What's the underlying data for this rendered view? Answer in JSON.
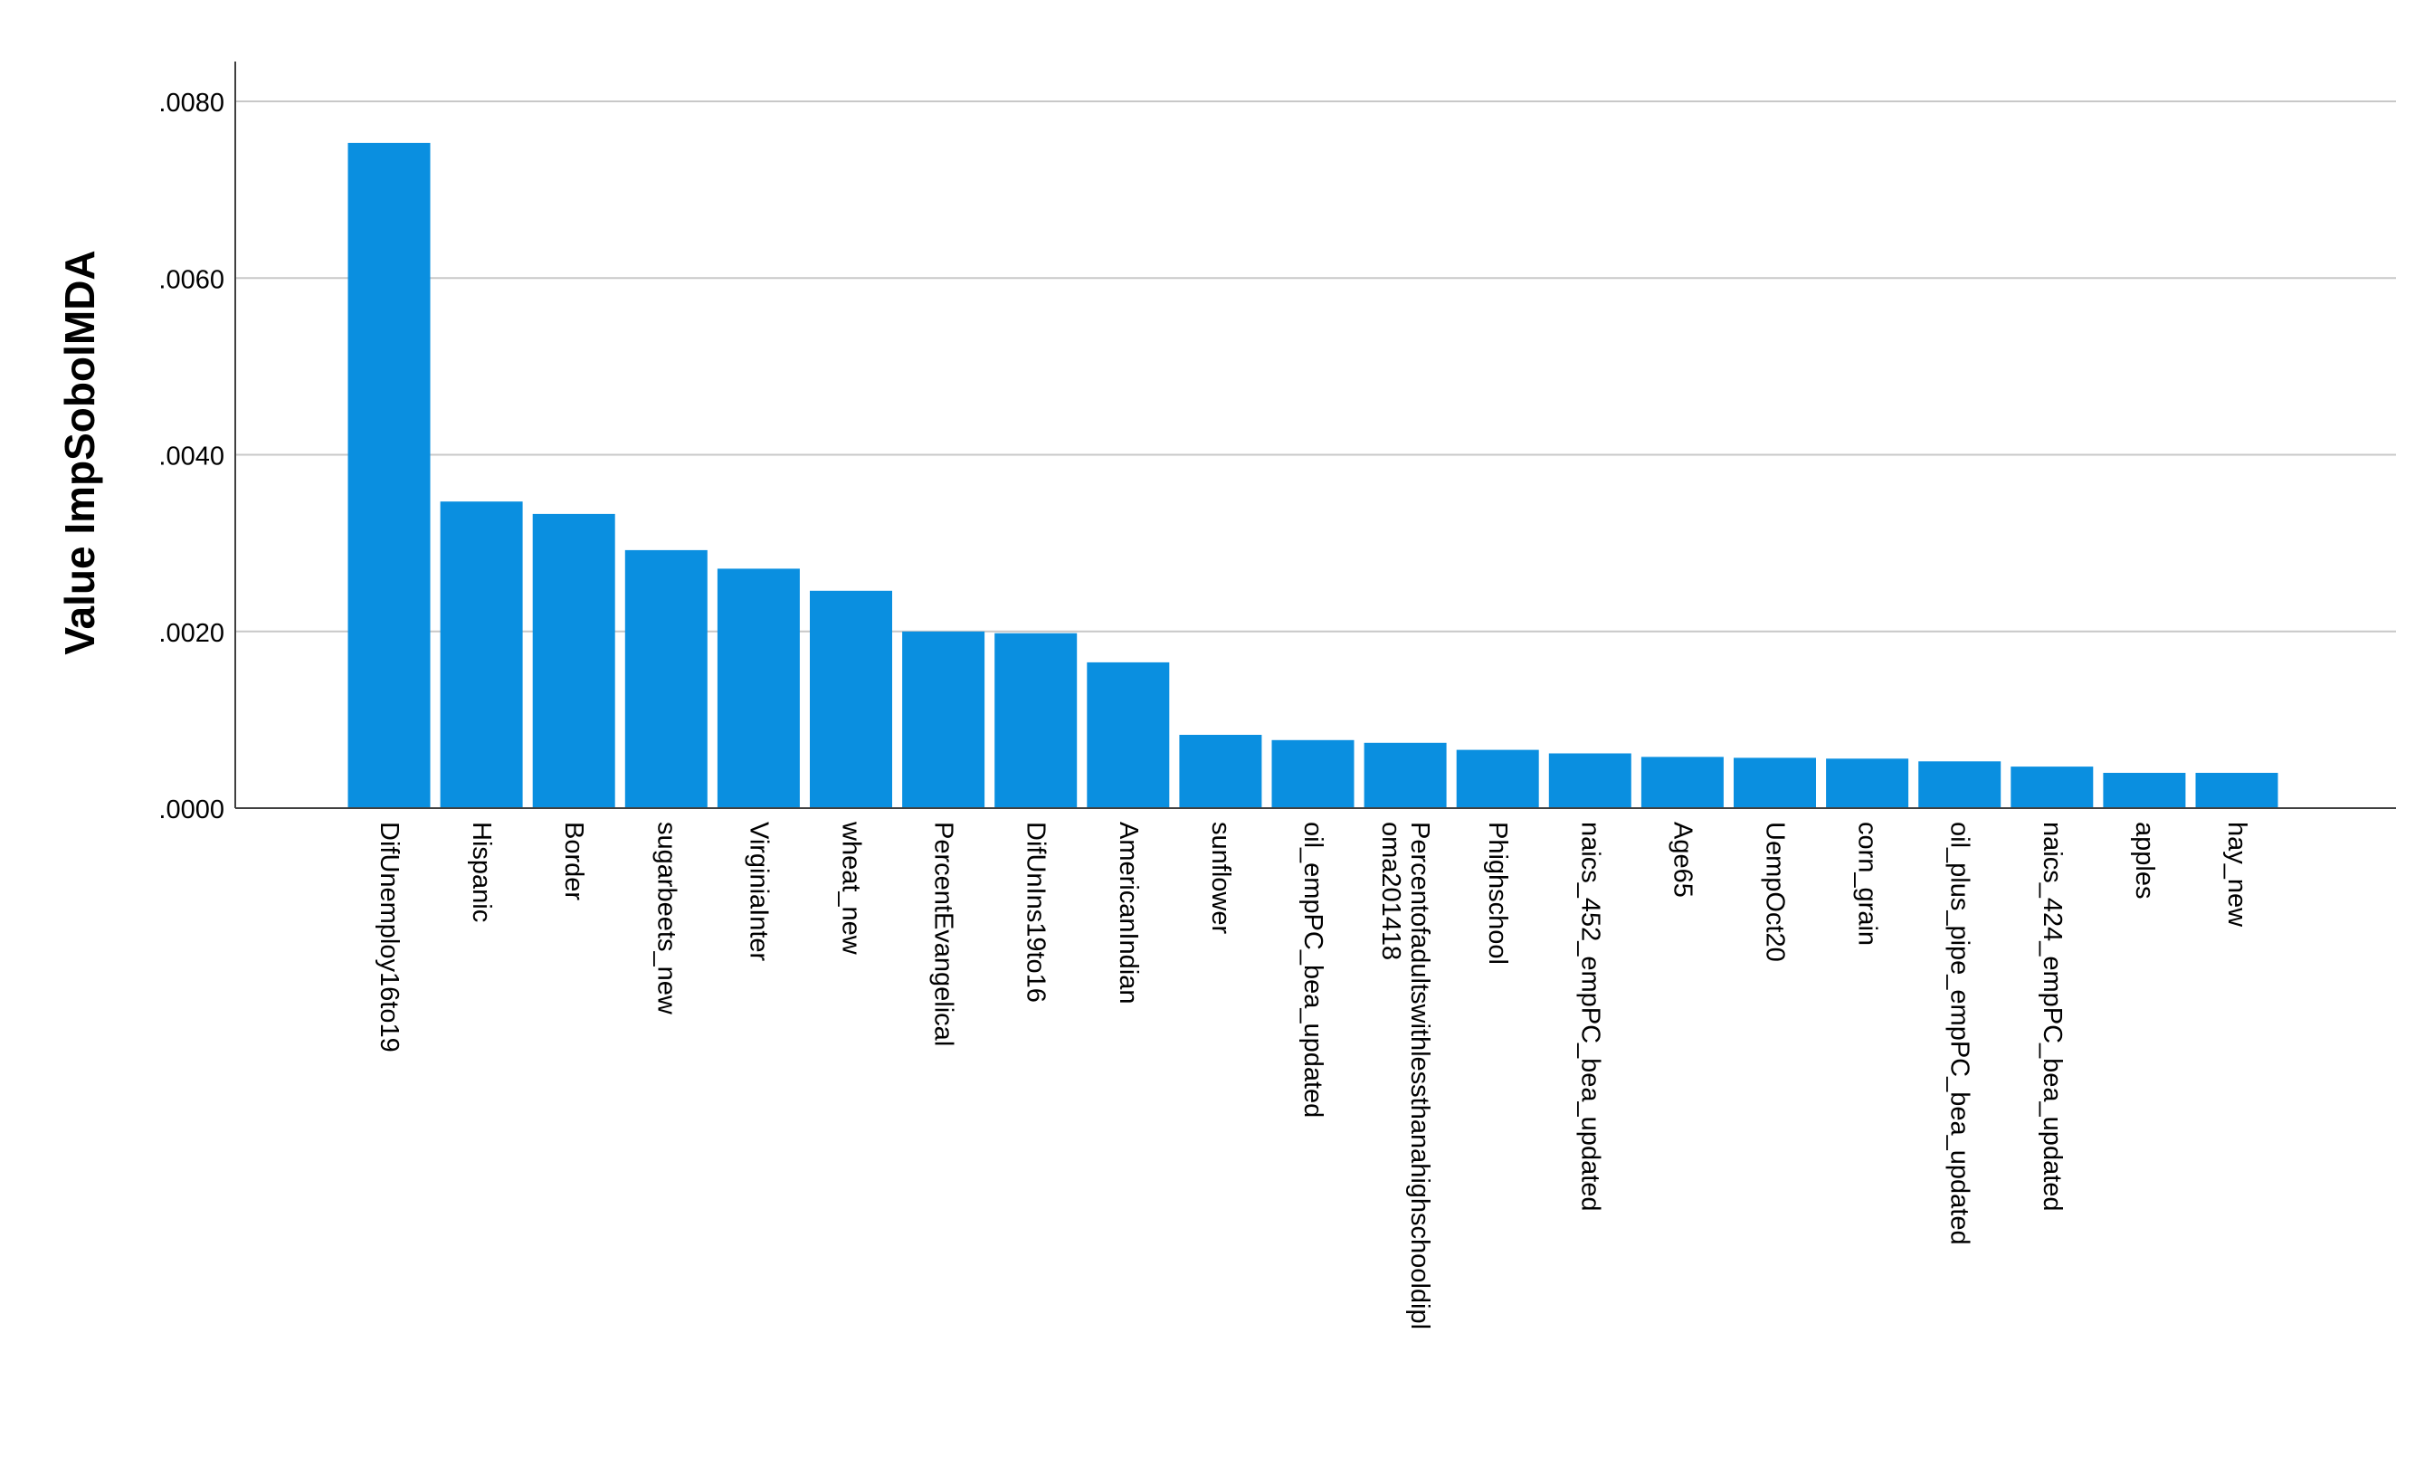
{
  "chart_data": {
    "type": "bar",
    "title": "",
    "xlabel": "",
    "ylabel": "Value ImpSobolMDA",
    "ylim": [
      0,
      0.0084
    ],
    "yticks": [
      0,
      0.002,
      0.004,
      0.006,
      0.008
    ],
    "ytick_labels": [
      ".0000",
      ".0020",
      ".0040",
      ".0060",
      ".0080"
    ],
    "grid": "horizontal",
    "legend": "none",
    "bar_color": "#0a8fe0",
    "categories": [
      "DifUnemploy16to19",
      "Hispanic",
      "Border",
      "sugarbeets_new",
      "VirginiaInter",
      "wheat_new",
      "PercentEvangelical",
      "DifUnIns19to16",
      "AmericanIndian",
      "sunflower",
      "oil_empPC_bea_updated",
      "Percentofadultswithlessthanahighschooldiploma201418",
      "Phighschool",
      "naics_452_empPC_bea_updated",
      "Age65",
      "UempOct20",
      "corn_grain",
      "oil_plus_pipe_empPC_bea_updated",
      "naics_424_empPC_bea_updated",
      "apples",
      "hay_new"
    ],
    "tick_label_lines": [
      [
        "DifUnemploy16to19"
      ],
      [
        "Hispanic"
      ],
      [
        "Border"
      ],
      [
        "sugarbeets_new"
      ],
      [
        "VirginiaInter"
      ],
      [
        "wheat_new"
      ],
      [
        "PercentEvangelical"
      ],
      [
        "DifUnIns19to16"
      ],
      [
        "AmericanIndian"
      ],
      [
        "sunflower"
      ],
      [
        "oil_empPC_bea_updated"
      ],
      [
        "Percentofadultswithlessthanahighschooldipl",
        "oma201418"
      ],
      [
        "Phighschool"
      ],
      [
        "naics_452_empPC_bea_updated"
      ],
      [
        "Age65"
      ],
      [
        "UempOct20"
      ],
      [
        "corn_grain"
      ],
      [
        "oil_plus_pipe_empPC_bea_updated"
      ],
      [
        "naics_424_empPC_bea_updated"
      ],
      [
        "apples"
      ],
      [
        "hay_new"
      ]
    ],
    "values": [
      0.00753,
      0.00347,
      0.00333,
      0.00292,
      0.00271,
      0.00246,
      0.002,
      0.00198,
      0.00165,
      0.00083,
      0.00077,
      0.00074,
      0.00066,
      0.00062,
      0.00058,
      0.00057,
      0.00056,
      0.00053,
      0.00047,
      0.0004,
      0.0004
    ]
  }
}
